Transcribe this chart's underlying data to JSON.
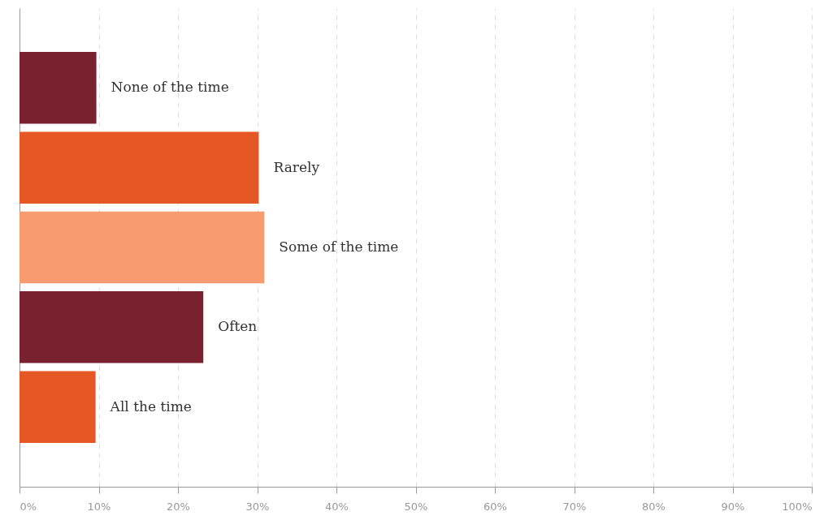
{
  "chart_data": {
    "type": "bar",
    "orientation": "horizontal",
    "categories": [
      "None of the time",
      "Rarely",
      "Some of the time",
      "Often",
      "All the time"
    ],
    "values": [
      9.7,
      30.2,
      30.9,
      23.2,
      9.6
    ],
    "colors": [
      "#7a2130",
      "#e55725",
      "#f69c70",
      "#7a2130",
      "#e55725"
    ],
    "xlim": [
      0,
      100
    ],
    "xticks": [
      {
        "value": 0,
        "label": "0%"
      },
      {
        "value": 10,
        "label": "10%"
      },
      {
        "value": 20,
        "label": "20%"
      },
      {
        "value": 30,
        "label": "30%"
      },
      {
        "value": 40,
        "label": "40%"
      },
      {
        "value": 50,
        "label": "50%"
      },
      {
        "value": 60,
        "label": "60%"
      },
      {
        "value": 70,
        "label": "70%"
      },
      {
        "value": 80,
        "label": "80%"
      },
      {
        "value": 90,
        "label": "90%"
      },
      {
        "value": 100,
        "label": "100%"
      }
    ],
    "grid": "x",
    "tick_labels": "x",
    "legend": false
  }
}
